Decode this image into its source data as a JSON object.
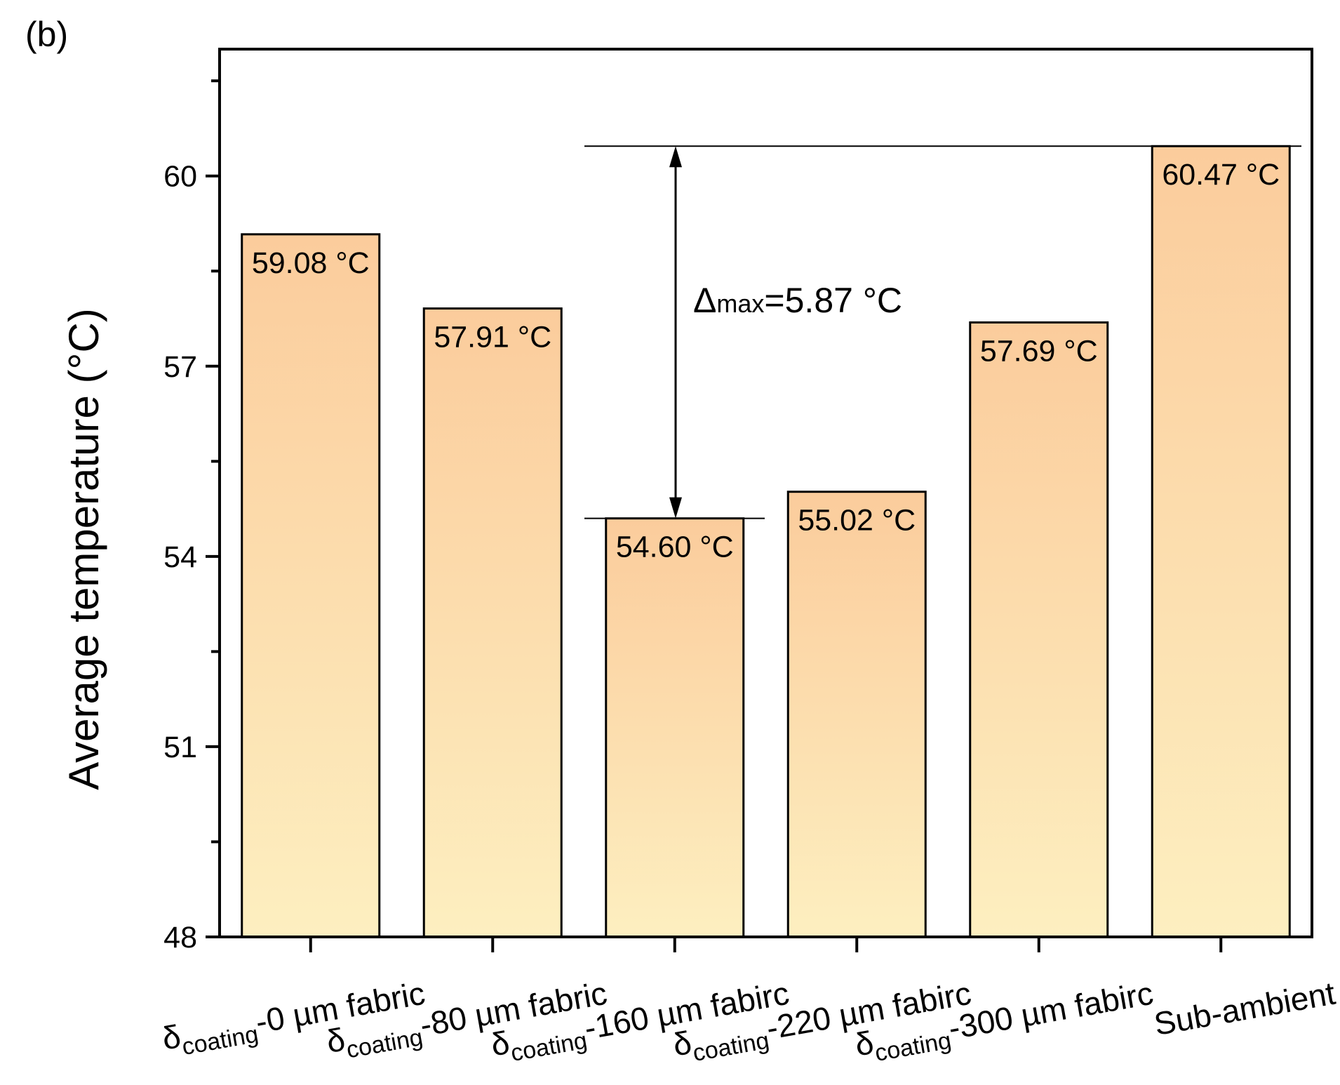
{
  "panel_label": "(b)",
  "chart_data": {
    "type": "bar",
    "categories": [
      {
        "prefix": "δ",
        "sub": "coating",
        "suffix": "-0 µm fabric"
      },
      {
        "prefix": "δ",
        "sub": "coating",
        "suffix": "-80 µm fabric"
      },
      {
        "prefix": "δ",
        "sub": "coating",
        "suffix": "-160 µm  fabirc"
      },
      {
        "prefix": "δ",
        "sub": "coating",
        "suffix": "-220 µm fabirc"
      },
      {
        "prefix": "δ",
        "sub": "coating",
        "suffix": "-300 µm fabirc"
      },
      {
        "prefix": "",
        "sub": "",
        "suffix": "Sub-ambient"
      }
    ],
    "values": [
      59.08,
      57.91,
      54.6,
      55.02,
      57.69,
      60.47
    ],
    "value_labels": [
      "59.08 °C",
      "57.91 °C",
      "54.60 °C",
      "55.02 °C",
      "57.69 °C",
      "60.47 °C"
    ],
    "ylabel": "Average temperature (°C)",
    "xlabel": "",
    "ylim": [
      48,
      62
    ],
    "yticks": [
      48,
      51,
      54,
      57,
      60
    ],
    "ytick_labels": [
      "48",
      "51",
      "54",
      "57",
      "60"
    ],
    "grid": false,
    "colors": {
      "bar_top": "#fbcc9c",
      "bar_bottom": "#fdefc0",
      "outline": "#000000"
    },
    "annotation": {
      "prefix": "Δ",
      "sub": "max",
      "suffix": "=5.87 °C",
      "from_value": 60.47,
      "to_value": 54.6
    }
  }
}
